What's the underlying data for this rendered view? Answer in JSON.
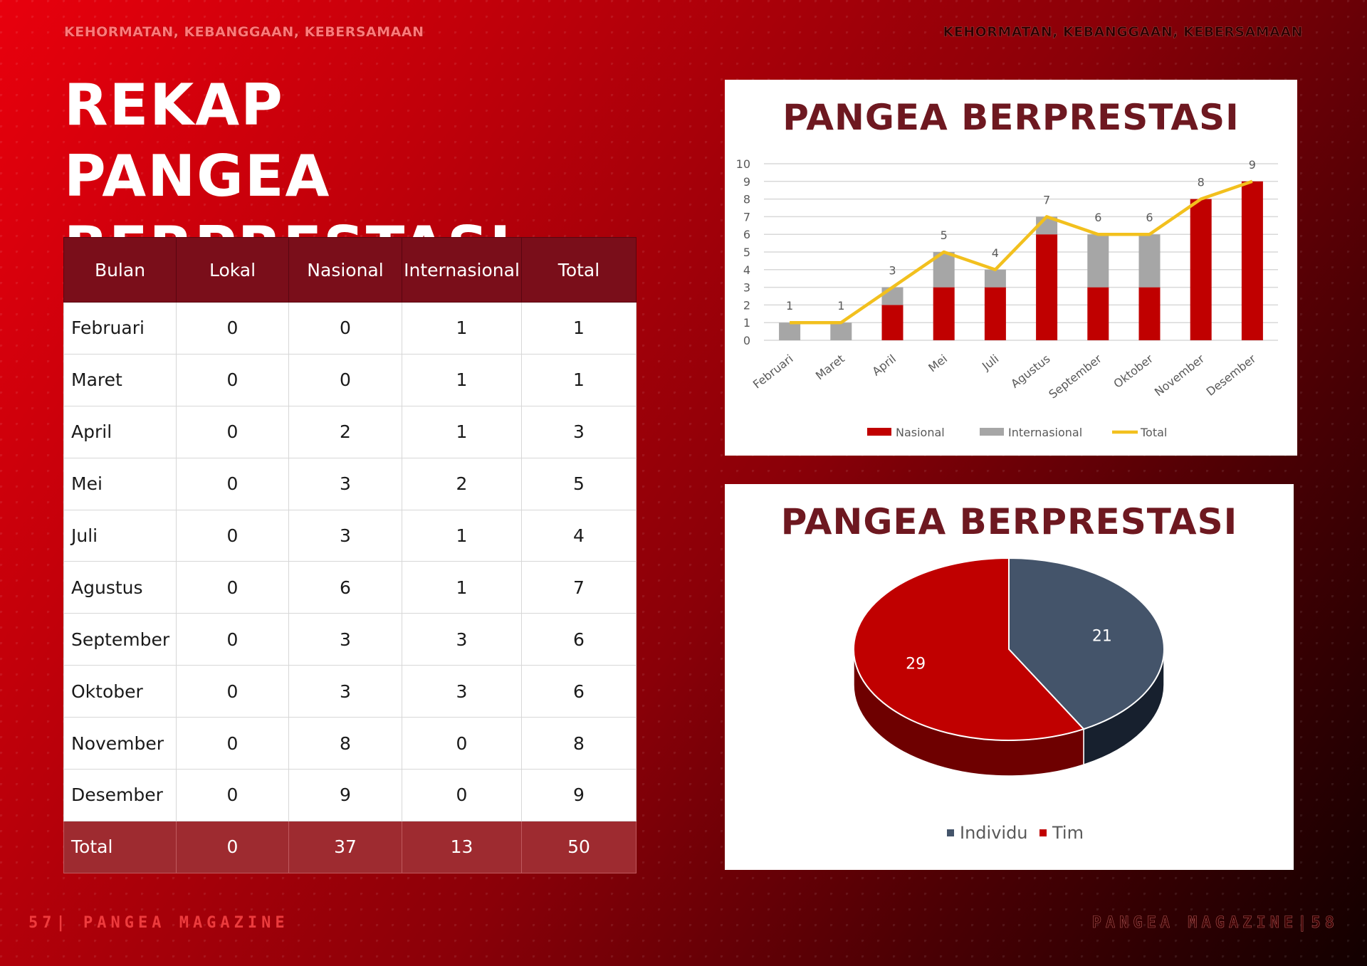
{
  "header": {
    "tagline_left": "KEHORMATAN, KEBANGGAAN, KEBERSAMAAN",
    "tagline_right": "KEHORMATAN, KEBANGGAAN, KEBERSAMAAN",
    "title_line1": "REKAP PANGEA",
    "title_line2": "BERPRESTASI"
  },
  "footer": {
    "left": "57| PANGEA MAGAZINE",
    "right": "PANGEA MAGAZINE|58"
  },
  "table": {
    "headers": [
      "Bulan",
      "Lokal",
      "Nasional",
      "Internasional",
      "Total"
    ],
    "rows": [
      [
        "Februari",
        "0",
        "0",
        "1",
        "1"
      ],
      [
        "Maret",
        "0",
        "0",
        "1",
        "1"
      ],
      [
        "April",
        "0",
        "2",
        "1",
        "3"
      ],
      [
        "Mei",
        "0",
        "3",
        "2",
        "5"
      ],
      [
        "Juli",
        "0",
        "3",
        "1",
        "4"
      ],
      [
        "Agustus",
        "0",
        "6",
        "1",
        "7"
      ],
      [
        "September",
        "0",
        "3",
        "3",
        "6"
      ],
      [
        "Oktober",
        "0",
        "3",
        "3",
        "6"
      ],
      [
        "November",
        "0",
        "8",
        "0",
        "8"
      ],
      [
        "Desember",
        "0",
        "9",
        "0",
        "9"
      ]
    ],
    "total_row": [
      "Total",
      "0",
      "37",
      "13",
      "50"
    ]
  },
  "colors": {
    "nasional": "#c00000",
    "internasional": "#a6a6a6",
    "total_line": "#f2c01e",
    "individu": "#44546a",
    "tim": "#c00000",
    "title": "#6e1820"
  },
  "chart_data": [
    {
      "type": "bar",
      "stacked": true,
      "title": "PANGEA BERPRESTASI",
      "categories": [
        "Februari",
        "Maret",
        "April",
        "Mei",
        "Juli",
        "Agustus",
        "September",
        "Oktober",
        "November",
        "Desember"
      ],
      "series": [
        {
          "name": "Nasional",
          "kind": "bar",
          "values": [
            0,
            0,
            2,
            3,
            3,
            6,
            3,
            3,
            8,
            9
          ]
        },
        {
          "name": "Internasional",
          "kind": "bar",
          "values": [
            1,
            1,
            1,
            2,
            1,
            1,
            3,
            3,
            0,
            0
          ]
        },
        {
          "name": "Total",
          "kind": "line",
          "values": [
            1,
            1,
            3,
            5,
            4,
            7,
            6,
            6,
            8,
            9
          ]
        }
      ],
      "ylim": [
        0,
        10
      ],
      "yticks": [
        0,
        1,
        2,
        3,
        4,
        5,
        6,
        7,
        8,
        9,
        10
      ],
      "grid": true,
      "legend": "bottom"
    },
    {
      "type": "pie",
      "title": "PANGEA BERPRESTASI",
      "labels": [
        "Individu",
        "Tim"
      ],
      "values": [
        21,
        29
      ],
      "legend": "bottom"
    }
  ]
}
